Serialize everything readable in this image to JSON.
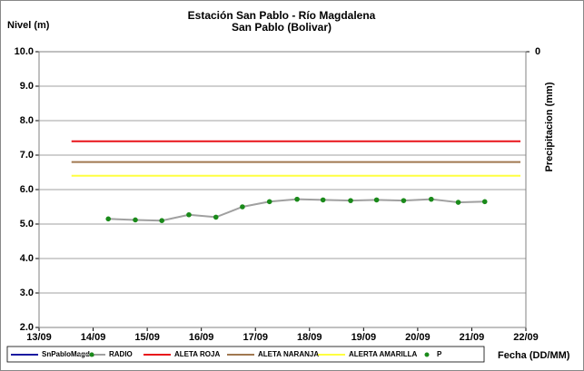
{
  "chart_data": {
    "type": "line",
    "title": "Estación San Pablo - Río Magdalena",
    "subtitle": "San Pablo (Bolivar)",
    "y_label": "Nivel (m)",
    "y2_label": "Precipitacion (mm)",
    "x_label": "Fecha (DD/MM)",
    "xlim": [
      13,
      22
    ],
    "xticks": [
      {
        "value": 13,
        "label": "13/09"
      },
      {
        "value": 14,
        "label": "14/09"
      },
      {
        "value": 15,
        "label": "15/09"
      },
      {
        "value": 16,
        "label": "16/09"
      },
      {
        "value": 17,
        "label": "17/09"
      },
      {
        "value": 18,
        "label": "18/09"
      },
      {
        "value": 19,
        "label": "19/09"
      },
      {
        "value": 20,
        "label": "20/09"
      },
      {
        "value": 21,
        "label": "21/09"
      },
      {
        "value": 22,
        "label": "22/09"
      }
    ],
    "ylim": [
      2,
      10
    ],
    "yticks": [
      {
        "value": 2,
        "label": "2.0"
      },
      {
        "value": 3,
        "label": "3.0"
      },
      {
        "value": 4,
        "label": "4.0"
      },
      {
        "value": 5,
        "label": "5.0"
      },
      {
        "value": 6,
        "label": "6.0"
      },
      {
        "value": 7,
        "label": "7.0"
      },
      {
        "value": 8,
        "label": "8.0"
      },
      {
        "value": 9,
        "label": "9.0"
      },
      {
        "value": 10,
        "label": "10.0"
      }
    ],
    "y2lim": [
      0,
      1
    ],
    "y2_inverted": true,
    "y2ticks": [
      0
    ],
    "grid": true,
    "legend": "bottom",
    "series": [
      {
        "name": "SnPabloMagda",
        "color": "#1a1aa0",
        "x": [],
        "values": []
      },
      {
        "name": "RADIO",
        "color": "#a0a0a0",
        "marker_color": "#1a8a1a",
        "marker": true,
        "x": [
          14.28,
          14.78,
          15.27,
          15.77,
          16.27,
          16.76,
          17.26,
          17.77,
          18.25,
          18.76,
          19.24,
          19.74,
          20.25,
          20.75,
          21.24
        ],
        "values": [
          5.15,
          5.12,
          5.1,
          5.27,
          5.2,
          5.5,
          5.65,
          5.72,
          5.7,
          5.68,
          5.7,
          5.68,
          5.72,
          5.63,
          5.65
        ]
      },
      {
        "name": "ALETA ROJA",
        "color": "#e8141a",
        "x": [
          13.6,
          21.9
        ],
        "values": [
          7.4,
          7.4
        ]
      },
      {
        "name": "ALETA NARANJA",
        "color": "#a07850",
        "x": [
          13.6,
          21.9
        ],
        "values": [
          6.8,
          6.8
        ]
      },
      {
        "name": "ALERTA AMARILLA",
        "color": "#ffff40",
        "x": [
          13.6,
          21.9
        ],
        "values": [
          6.4,
          6.4
        ]
      },
      {
        "name": "P",
        "color": "#1a8a1a",
        "marker": true,
        "no_line": true,
        "x": [],
        "values": []
      }
    ]
  }
}
